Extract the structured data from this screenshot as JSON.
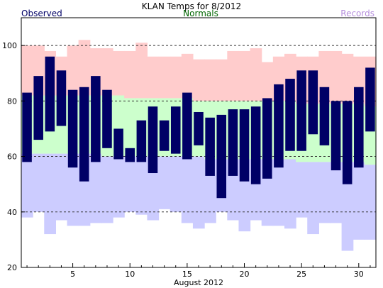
{
  "chart_data": {
    "type": "bar",
    "title": "KLAN Temps for 8/2012",
    "xlabel": "August 2012",
    "ylabel": "",
    "legend": [
      {
        "name": "Observed",
        "color": "#000066",
        "placement": "top-left"
      },
      {
        "name": "Normals",
        "color": "#006600",
        "placement": "top-center"
      },
      {
        "name": "Records",
        "color": "#b48cdc",
        "placement": "top-right"
      }
    ],
    "ylim": [
      20,
      110
    ],
    "xlim": [
      0.5,
      31.5
    ],
    "y_ticks": [
      20,
      40,
      60,
      80,
      100
    ],
    "x_ticks": [
      5,
      10,
      15,
      20,
      25,
      30
    ],
    "gridlines": [
      40,
      60,
      80,
      100
    ],
    "days": [
      1,
      2,
      3,
      4,
      5,
      6,
      7,
      8,
      9,
      10,
      11,
      12,
      13,
      14,
      15,
      16,
      17,
      18,
      19,
      20,
      21,
      22,
      23,
      24,
      25,
      26,
      27,
      28,
      29,
      30,
      31
    ],
    "series": [
      {
        "name": "Observed",
        "kind": "high",
        "values": [
          83,
          89,
          96,
          91,
          84,
          85,
          89,
          84,
          70,
          63,
          73,
          78,
          73,
          78,
          83,
          76,
          74,
          75,
          77,
          77,
          78,
          81,
          86,
          88,
          91,
          91,
          85,
          80,
          80,
          85,
          92
        ]
      },
      {
        "name": "Observed",
        "kind": "low",
        "values": [
          58,
          66,
          69,
          71,
          56,
          51,
          58,
          63,
          59,
          58,
          58,
          54,
          62,
          61,
          59,
          64,
          53,
          45,
          53,
          51,
          50,
          52,
          56,
          62,
          62,
          68,
          64,
          55,
          50,
          56,
          69
        ]
      },
      {
        "name": "Normals",
        "kind": "high",
        "values": [
          82,
          82,
          82,
          82,
          82,
          82,
          82,
          82,
          82,
          81,
          81,
          81,
          81,
          81,
          81,
          80,
          80,
          80,
          80,
          80,
          80,
          80,
          80,
          80,
          79,
          79,
          79,
          79,
          79,
          79,
          78
        ]
      },
      {
        "name": "Normals",
        "kind": "low",
        "values": [
          61,
          61,
          61,
          61,
          61,
          61,
          61,
          60,
          60,
          60,
          60,
          60,
          60,
          60,
          60,
          60,
          59,
          59,
          59,
          59,
          59,
          59,
          59,
          59,
          58,
          58,
          58,
          58,
          58,
          58,
          57
        ]
      },
      {
        "name": "Records",
        "kind": "high",
        "values": [
          100,
          100,
          98,
          96,
          100,
          102,
          99,
          99,
          98,
          98,
          101,
          96,
          96,
          96,
          97,
          95,
          95,
          95,
          98,
          98,
          99,
          94,
          96,
          97,
          96,
          96,
          98,
          98,
          97,
          96,
          96
        ]
      },
      {
        "name": "Records",
        "kind": "low",
        "values": [
          38,
          40,
          32,
          37,
          35,
          35,
          36,
          36,
          38,
          40,
          39,
          37,
          41,
          40,
          36,
          34,
          36,
          40,
          37,
          33,
          37,
          35,
          35,
          34,
          38,
          32,
          36,
          36,
          26,
          30,
          30
        ]
      }
    ],
    "colors": {
      "observed": "#000066",
      "normals_band": "#ccffcc",
      "records_high_band": "#ffcccc",
      "records_low_band": "#ccccff",
      "grid": "#333333",
      "axis": "#000000"
    }
  }
}
